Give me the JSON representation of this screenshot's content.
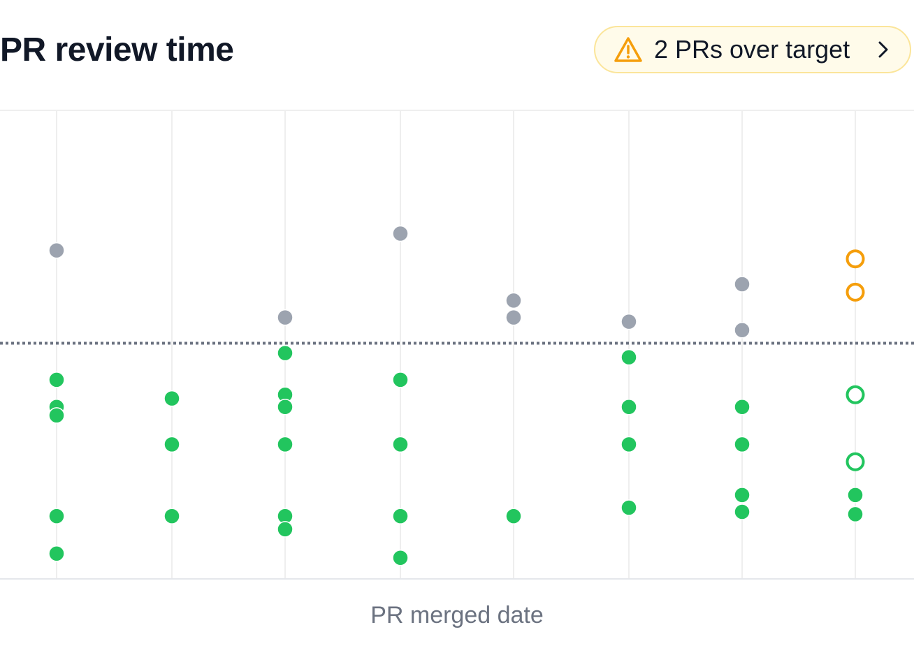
{
  "header": {
    "title": "PR review time",
    "alert": {
      "label": "2 PRs over target",
      "icon": "warning-triangle-icon",
      "action_icon": "chevron-right-icon",
      "color": "#f59e0b"
    }
  },
  "chart_data": {
    "type": "scatter",
    "title": "PR review time",
    "xlabel": "PR merged date",
    "ylabel": "",
    "grid": true,
    "legend": "none",
    "categories": [
      "",
      "",
      "",
      "",
      "",
      "",
      "",
      ""
    ],
    "ylim": [
      0,
      100
    ],
    "target": 50.3,
    "colors": {
      "within_target": "#22c55e",
      "over_target": "#9ca3af",
      "highlight_over": "#f59e0b",
      "target_line": "#6b7280",
      "gridline": "#eeeeee"
    },
    "series": [
      {
        "name": "",
        "category_index": 0,
        "points": [
          {
            "y": 70.1,
            "status": "over"
          },
          {
            "y": 42.5,
            "status": "within"
          },
          {
            "y": 36.7,
            "status": "within"
          },
          {
            "y": 34.9,
            "status": "within"
          },
          {
            "y": 13.4,
            "status": "within"
          },
          {
            "y": 5.4,
            "status": "within"
          }
        ]
      },
      {
        "name": "",
        "category_index": 1,
        "points": [
          {
            "y": 38.5,
            "status": "within"
          },
          {
            "y": 28.7,
            "status": "within"
          },
          {
            "y": 13.4,
            "status": "within"
          }
        ]
      },
      {
        "name": "",
        "category_index": 2,
        "points": [
          {
            "y": 55.8,
            "status": "over"
          },
          {
            "y": 48.2,
            "status": "within"
          },
          {
            "y": 39.3,
            "status": "within"
          },
          {
            "y": 36.7,
            "status": "within"
          },
          {
            "y": 28.7,
            "status": "within"
          },
          {
            "y": 13.4,
            "status": "within"
          },
          {
            "y": 10.6,
            "status": "within"
          }
        ]
      },
      {
        "name": "",
        "category_index": 3,
        "points": [
          {
            "y": 73.7,
            "status": "over"
          },
          {
            "y": 42.5,
            "status": "within"
          },
          {
            "y": 28.7,
            "status": "within"
          },
          {
            "y": 13.4,
            "status": "within"
          },
          {
            "y": 4.5,
            "status": "within"
          }
        ]
      },
      {
        "name": "",
        "category_index": 4,
        "points": [
          {
            "y": 59.4,
            "status": "over"
          },
          {
            "y": 55.8,
            "status": "over"
          },
          {
            "y": 13.4,
            "status": "within"
          }
        ]
      },
      {
        "name": "",
        "category_index": 5,
        "points": [
          {
            "y": 54.9,
            "status": "over"
          },
          {
            "y": 47.3,
            "status": "within"
          },
          {
            "y": 36.7,
            "status": "within"
          },
          {
            "y": 28.7,
            "status": "within"
          },
          {
            "y": 15.2,
            "status": "within"
          }
        ]
      },
      {
        "name": "",
        "category_index": 6,
        "points": [
          {
            "y": 62.9,
            "status": "over"
          },
          {
            "y": 53.1,
            "status": "over"
          },
          {
            "y": 36.7,
            "status": "within"
          },
          {
            "y": 28.7,
            "status": "within"
          },
          {
            "y": 17.9,
            "status": "within"
          },
          {
            "y": 14.3,
            "status": "within"
          }
        ]
      },
      {
        "name": "",
        "category_index": 7,
        "points": [
          {
            "y": 68.3,
            "status": "highlight-over"
          },
          {
            "y": 61.2,
            "status": "highlight-over"
          },
          {
            "y": 39.3,
            "status": "highlight-within"
          },
          {
            "y": 25.0,
            "status": "highlight-within"
          },
          {
            "y": 17.9,
            "status": "within"
          },
          {
            "y": 13.8,
            "status": "within"
          }
        ]
      }
    ]
  }
}
